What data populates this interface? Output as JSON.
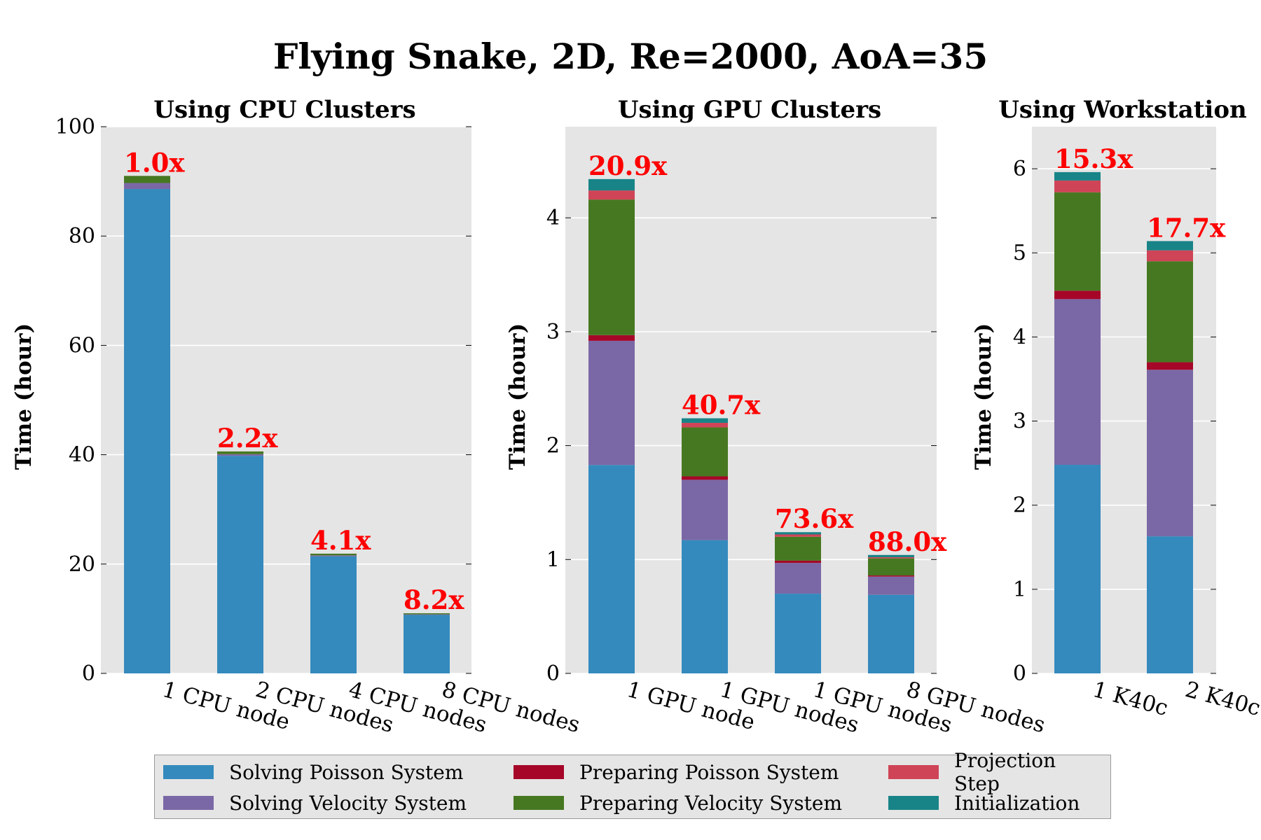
{
  "title": "Flying Snake, 2D, Re=2000, AoA=35",
  "colors": {
    "background": "#e5e5e5",
    "speedup": "#ff0000"
  },
  "legend": {
    "items": [
      {
        "name": "Solving Poisson System",
        "color": "#348abd"
      },
      {
        "name": "Preparing Poisson System",
        "color": "#a60628"
      },
      {
        "name": "Projection Step",
        "color": "#cf4457"
      },
      {
        "name": "Solving Velocity System",
        "color": "#7a68a6"
      },
      {
        "name": "Preparing Velocity System",
        "color": "#467821"
      },
      {
        "name": "Initialization",
        "color": "#188487"
      }
    ]
  },
  "chart_data": [
    {
      "type": "bar",
      "stacked": true,
      "title": "Using CPU Clusters",
      "ylabel": "Time (hour)",
      "ylim": [
        0,
        100
      ],
      "yticks": [
        0,
        20,
        40,
        60,
        80,
        100
      ],
      "categories": [
        "1 CPU node",
        "2 CPU nodes",
        "4 CPU nodes",
        "8 CPU nodes"
      ],
      "speedup_labels": [
        "1.0x",
        "2.2x",
        "4.1x",
        "8.2x"
      ],
      "series": [
        {
          "name": "Solving Poisson System",
          "values": [
            88.6,
            39.8,
            21.4,
            10.7
          ]
        },
        {
          "name": "Solving Velocity System",
          "values": [
            1.1,
            0.3,
            0.2,
            0.1
          ]
        },
        {
          "name": "Preparing Poisson System",
          "values": [
            0.0,
            0.0,
            0.0,
            0.0
          ]
        },
        {
          "name": "Preparing Velocity System",
          "values": [
            1.3,
            0.5,
            0.3,
            0.2
          ]
        },
        {
          "name": "Projection Step",
          "values": [
            0.0,
            0.0,
            0.0,
            0.0
          ]
        },
        {
          "name": "Initialization",
          "values": [
            0.0,
            0.0,
            0.0,
            0.0
          ]
        }
      ]
    },
    {
      "type": "bar",
      "stacked": true,
      "title": "Using GPU Clusters",
      "ylabel": "Time (hour)",
      "ylim": [
        0,
        4.8
      ],
      "yticks": [
        0,
        1,
        2,
        3,
        4
      ],
      "categories": [
        "1 GPU node",
        "1 GPU nodes",
        "1 GPU nodes",
        "8 GPU nodes"
      ],
      "speedup_labels": [
        "20.9x",
        "40.7x",
        "73.6x",
        "88.0x"
      ],
      "series": [
        {
          "name": "Solving Poisson System",
          "values": [
            1.83,
            1.17,
            0.7,
            0.69
          ]
        },
        {
          "name": "Solving Velocity System",
          "values": [
            1.09,
            0.53,
            0.27,
            0.16
          ]
        },
        {
          "name": "Preparing Poisson System",
          "values": [
            0.05,
            0.03,
            0.02,
            0.01
          ]
        },
        {
          "name": "Preparing Velocity System",
          "values": [
            1.19,
            0.43,
            0.21,
            0.15
          ]
        },
        {
          "name": "Projection Step",
          "values": [
            0.08,
            0.04,
            0.02,
            0.01
          ]
        },
        {
          "name": "Initialization",
          "values": [
            0.1,
            0.04,
            0.02,
            0.02
          ]
        }
      ]
    },
    {
      "type": "bar",
      "stacked": true,
      "title": "Using Workstation",
      "ylabel": "Time (hour)",
      "ylim": [
        0,
        6.5
      ],
      "yticks": [
        0,
        1,
        2,
        3,
        4,
        5,
        6
      ],
      "categories": [
        "1 K40c",
        "2 K40c"
      ],
      "speedup_labels": [
        "15.3x",
        "17.7x"
      ],
      "series": [
        {
          "name": "Solving Poisson System",
          "values": [
            2.48,
            1.63
          ]
        },
        {
          "name": "Solving Velocity System",
          "values": [
            1.97,
            1.98
          ]
        },
        {
          "name": "Preparing Poisson System",
          "values": [
            0.1,
            0.09
          ]
        },
        {
          "name": "Preparing Velocity System",
          "values": [
            1.17,
            1.2
          ]
        },
        {
          "name": "Projection Step",
          "values": [
            0.14,
            0.13
          ]
        },
        {
          "name": "Initialization",
          "values": [
            0.1,
            0.11
          ]
        }
      ]
    }
  ]
}
